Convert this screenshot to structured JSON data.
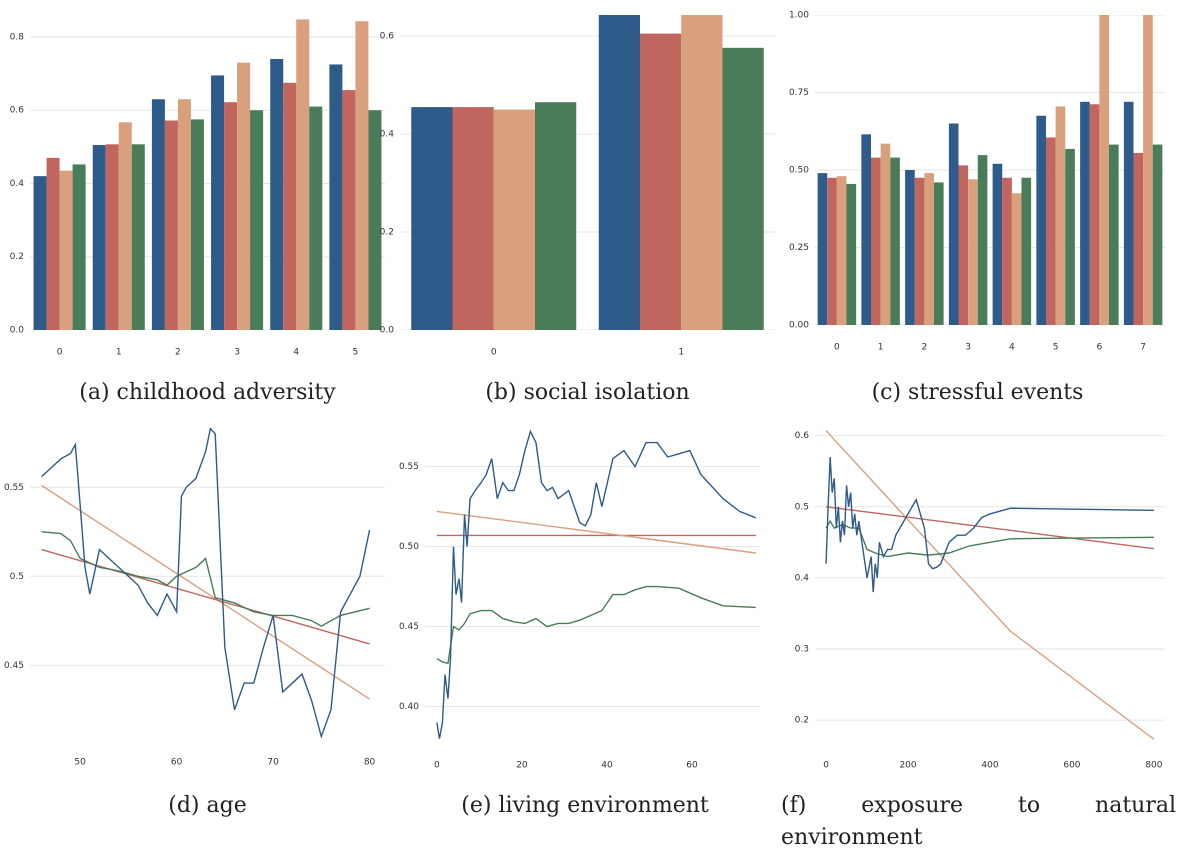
{
  "chart_data": [
    {
      "type": "bar",
      "caption": "(a) childhood adversity",
      "categories": [
        "0",
        "1",
        "2",
        "3",
        "4",
        "5"
      ],
      "series": [
        {
          "color": "#2e5b8a",
          "values": [
            0.42,
            0.505,
            0.63,
            0.695,
            0.74,
            0.725
          ]
        },
        {
          "color": "#c0665e",
          "values": [
            0.47,
            0.507,
            0.572,
            0.622,
            0.675,
            0.655
          ]
        },
        {
          "color": "#d9a07e",
          "values": [
            0.435,
            0.567,
            0.63,
            0.73,
            0.848,
            0.843
          ]
        },
        {
          "color": "#4a7c59",
          "values": [
            0.452,
            0.507,
            0.575,
            0.6,
            0.61,
            0.6
          ]
        }
      ],
      "ylim": [
        0,
        0.86
      ],
      "yticks": [
        {
          "value": 0,
          "label": "0.0"
        },
        0.2,
        0.4,
        0.6,
        0.8
      ],
      "grid": true
    },
    {
      "type": "bar",
      "caption": "(b) social isolation",
      "categories": [
        "0",
        "1"
      ],
      "series": [
        {
          "color": "#2e5b8a",
          "values": [
            0.455,
            0.645
          ]
        },
        {
          "color": "#c0665e",
          "values": [
            0.455,
            0.605
          ]
        },
        {
          "color": "#d9a07e",
          "values": [
            0.45,
            0.645
          ]
        },
        {
          "color": "#4a7c59",
          "values": [
            0.465,
            0.576
          ]
        }
      ],
      "ylim": [
        0,
        0.643
      ],
      "yticks": [
        {
          "value": 0,
          "label": "0.0"
        },
        0.2,
        0.4,
        0.6
      ],
      "grid": true
    },
    {
      "type": "bar",
      "caption": "(c) stressful events",
      "categories": [
        "0",
        "1",
        "2",
        "3",
        "4",
        "5",
        "6",
        "7"
      ],
      "series": [
        {
          "color": "#2e5b8a",
          "values": [
            0.49,
            0.615,
            0.5,
            0.65,
            0.52,
            0.675,
            0.72,
            0.72
          ]
        },
        {
          "color": "#c0665e",
          "values": [
            0.475,
            0.54,
            0.475,
            0.515,
            0.475,
            0.605,
            0.712,
            0.555
          ]
        },
        {
          "color": "#d9a07e",
          "values": [
            0.48,
            0.585,
            0.49,
            0.47,
            0.425,
            0.705,
            1.0,
            1.0
          ]
        },
        {
          "color": "#4a7c59",
          "values": [
            0.455,
            0.54,
            0.46,
            0.548,
            0.475,
            0.568,
            0.582,
            0.582
          ]
        }
      ],
      "ylim": [
        0,
        1.0
      ],
      "yticks": [
        {
          "value": 0,
          "label": "0.00"
        },
        0.25,
        {
          "value": 0.5,
          "label": "0.50"
        },
        {
          "value": 0.75,
          "label": "0.75"
        },
        {
          "value": 1,
          "label": "1.00"
        }
      ],
      "grid": true
    },
    {
      "type": "line",
      "caption": "(d) age",
      "series": [
        {
          "color": "#d9a07e",
          "x": [
            46,
            80
          ],
          "values": [
            0.551,
            0.431
          ]
        },
        {
          "color": "#c0665e",
          "x": [
            46,
            80
          ],
          "values": [
            0.515,
            0.462
          ]
        },
        {
          "color": "#4a7c59",
          "x": [
            46,
            48,
            49,
            50,
            52,
            54,
            56,
            58,
            59,
            60,
            62,
            63,
            64,
            66,
            68,
            70,
            72,
            74,
            75,
            77,
            80
          ],
          "values": [
            0.525,
            0.524,
            0.52,
            0.51,
            0.505,
            0.503,
            0.5,
            0.498,
            0.495,
            0.5,
            0.505,
            0.51,
            0.488,
            0.485,
            0.48,
            0.478,
            0.478,
            0.475,
            0.472,
            0.478,
            0.482
          ]
        },
        {
          "color": "#2e5b8a",
          "x": [
            46,
            47,
            48,
            49,
            49.5,
            50,
            50.5,
            51,
            52,
            53,
            54,
            55,
            56,
            57,
            58,
            59,
            60,
            60.5,
            61,
            62,
            63,
            63.5,
            64,
            65,
            66,
            67,
            68,
            69,
            70,
            71,
            72,
            73,
            74,
            75,
            76,
            77,
            78,
            79,
            80
          ],
          "values": [
            0.556,
            0.561,
            0.566,
            0.569,
            0.574,
            0.54,
            0.505,
            0.49,
            0.515,
            0.51,
            0.505,
            0.5,
            0.495,
            0.485,
            0.478,
            0.49,
            0.48,
            0.545,
            0.55,
            0.555,
            0.57,
            0.583,
            0.58,
            0.46,
            0.425,
            0.44,
            0.44,
            0.46,
            0.478,
            0.435,
            0.44,
            0.445,
            0.43,
            0.41,
            0.425,
            0.48,
            0.49,
            0.5,
            0.526
          ]
        }
      ],
      "xlim": [
        44.8,
        81.6
      ],
      "xticks": [
        50,
        60,
        70,
        80
      ],
      "ylim": [
        0.408,
        0.585
      ],
      "yticks": [
        0.45,
        0.5,
        0.55
      ],
      "grid": true
    },
    {
      "type": "line",
      "caption": "(e) living environment",
      "series": [
        {
          "color": "#c0665e",
          "x": [
            0,
            75
          ],
          "values": [
            0.507,
            0.507
          ]
        },
        {
          "color": "#d9a07e",
          "x": [
            0,
            75
          ],
          "values": [
            0.522,
            0.496
          ]
        },
        {
          "color": "#4a7c59",
          "x": [
            0,
            1.3,
            2.6,
            3.9,
            5.2,
            6.5,
            7.8,
            10.4,
            12.9,
            15.5,
            18.1,
            20.7,
            23.3,
            25.9,
            28.5,
            31,
            33.6,
            36.2,
            38.8,
            41.4,
            44,
            46.6,
            49.2,
            51.8,
            56.9,
            62.1,
            67.3,
            75
          ],
          "values": [
            0.43,
            0.428,
            0.427,
            0.45,
            0.448,
            0.452,
            0.458,
            0.46,
            0.46,
            0.455,
            0.453,
            0.452,
            0.455,
            0.45,
            0.452,
            0.452,
            0.454,
            0.457,
            0.46,
            0.47,
            0.47,
            0.473,
            0.475,
            0.475,
            0.474,
            0.468,
            0.463,
            0.462
          ]
        },
        {
          "color": "#2e5b8a",
          "x": [
            0,
            0.6,
            1.3,
            1.9,
            2.6,
            3.2,
            3.9,
            4.5,
            5.2,
            5.8,
            6.5,
            7.1,
            7.8,
            9,
            10.4,
            11.6,
            12.9,
            14.2,
            15.5,
            16.8,
            18.1,
            19.4,
            20.7,
            22,
            23.3,
            24.6,
            25.9,
            27.2,
            28.5,
            31,
            33.6,
            34.9,
            36.2,
            37.5,
            38.8,
            41.4,
            44,
            46.6,
            49.2,
            51.8,
            54.3,
            56.9,
            59.5,
            62.1,
            67.3,
            71.2,
            75
          ],
          "values": [
            0.39,
            0.38,
            0.39,
            0.42,
            0.405,
            0.43,
            0.5,
            0.47,
            0.48,
            0.465,
            0.52,
            0.5,
            0.53,
            0.535,
            0.54,
            0.545,
            0.555,
            0.53,
            0.54,
            0.535,
            0.535,
            0.545,
            0.56,
            0.572,
            0.565,
            0.54,
            0.535,
            0.537,
            0.53,
            0.535,
            0.515,
            0.513,
            0.52,
            0.54,
            0.525,
            0.555,
            0.56,
            0.55,
            0.565,
            0.565,
            0.556,
            0.558,
            0.56,
            0.545,
            0.53,
            0.522,
            0.518
          ]
        }
      ],
      "xlim": [
        -2.8,
        76
      ],
      "xticks": [
        0,
        20,
        40,
        60
      ],
      "ylim": [
        0.376,
        0.576
      ],
      "yticks": [
        {
          "value": 0.4,
          "label": "0.40"
        },
        0.45,
        {
          "value": 0.5,
          "label": "0.50"
        },
        0.55
      ],
      "grid": true
    },
    {
      "type": "line",
      "caption": "(f) exposure to natural environment",
      "series": [
        {
          "color": "#d9a07e",
          "x": [
            0,
            450,
            800
          ],
          "values": [
            0.607,
            0.325,
            0.173
          ]
        },
        {
          "color": "#c0665e",
          "x": [
            0,
            800
          ],
          "values": [
            0.5,
            0.441
          ]
        },
        {
          "color": "#4a7c59",
          "x": [
            0,
            10,
            20,
            40,
            60,
            80,
            100,
            120,
            150,
            200,
            250,
            300,
            350,
            400,
            450,
            600,
            800
          ],
          "values": [
            0.47,
            0.48,
            0.47,
            0.475,
            0.47,
            0.47,
            0.44,
            0.435,
            0.43,
            0.435,
            0.432,
            0.435,
            0.445,
            0.45,
            0.455,
            0.456,
            0.457
          ]
        },
        {
          "color": "#2e5b8a",
          "x": [
            0,
            5,
            10,
            15,
            20,
            25,
            30,
            35,
            40,
            45,
            50,
            55,
            60,
            65,
            70,
            75,
            80,
            90,
            100,
            110,
            115,
            120,
            125,
            130,
            140,
            150,
            160,
            170,
            180,
            190,
            200,
            210,
            220,
            230,
            240,
            250,
            260,
            270,
            280,
            300,
            320,
            340,
            360,
            380,
            400,
            450,
            800
          ],
          "values": [
            0.42,
            0.5,
            0.57,
            0.52,
            0.54,
            0.47,
            0.5,
            0.45,
            0.48,
            0.46,
            0.53,
            0.5,
            0.52,
            0.47,
            0.49,
            0.46,
            0.48,
            0.44,
            0.4,
            0.43,
            0.38,
            0.42,
            0.4,
            0.45,
            0.43,
            0.44,
            0.44,
            0.46,
            0.47,
            0.48,
            0.49,
            0.5,
            0.51,
            0.49,
            0.47,
            0.42,
            0.413,
            0.415,
            0.42,
            0.45,
            0.46,
            0.46,
            0.47,
            0.485,
            0.49,
            0.498,
            0.495
          ]
        }
      ],
      "xlim": [
        -27,
        827
      ],
      "xticks": [
        0,
        200,
        400,
        600,
        800
      ],
      "ylim": [
        0.165,
        0.615
      ],
      "yticks": [
        0.2,
        0.3,
        0.4,
        0.5,
        0.6
      ],
      "grid": true
    }
  ]
}
